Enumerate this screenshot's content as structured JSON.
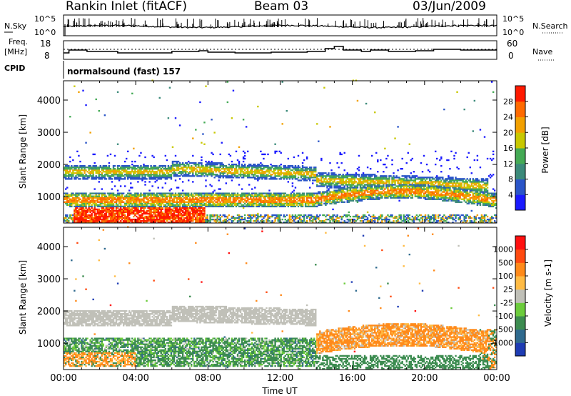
{
  "header": {
    "station": "Rankin Inlet (fitACF)",
    "beam": "Beam 03",
    "date": "03/Jun/2009"
  },
  "side_labels": {
    "nsky": "N.Sky",
    "freq_top": "Freq.",
    "freq_bottom": "[MHz]",
    "cpid": "CPID",
    "nsearch": "N.Search",
    "nave": "Nave"
  },
  "noise_axis": {
    "left_top": "10^5",
    "left_bottom": "10^0",
    "right_top": "10^5",
    "right_bottom": "10^0"
  },
  "freq_axis": {
    "left_top": "18",
    "left_bottom": "8",
    "right_top": "60",
    "right_bottom": "0"
  },
  "cpid_text": "normalsound (fast) 157",
  "chart_data": [
    {
      "type": "heatmap",
      "name": "power-panel",
      "ylabel": "Slant Range [km]",
      "xlabel": "",
      "ylim": [
        180,
        4600
      ],
      "yticks": [
        1000,
        2000,
        3000,
        4000
      ],
      "colorbar": {
        "label": "Power [dB]",
        "ticks": [
          "4",
          "8",
          "12",
          "16",
          "20",
          "24",
          "28"
        ],
        "colors": [
          "#1a1aff",
          "#2a55c8",
          "#3b8a7a",
          "#44aa55",
          "#c8c800",
          "#f2a000",
          "#ff6a00",
          "#ff1a00"
        ]
      },
      "bands": [
        {
          "range_km": [
            250,
            700
          ],
          "dominant": "28+ dB (red)",
          "x_hours": [
            0.5,
            7.5
          ]
        },
        {
          "range_km": [
            700,
            1100
          ],
          "dominant": "12-24 dB",
          "x_hours": [
            0,
            24
          ]
        },
        {
          "range_km": [
            1500,
            2100
          ],
          "dominant": "8-20 dB",
          "x_hours": [
            0,
            14
          ]
        },
        {
          "range_km": [
            1100,
            1800
          ],
          "dominant": "12-24 dB",
          "x_hours": [
            14,
            22
          ]
        }
      ]
    },
    {
      "type": "heatmap",
      "name": "velocity-panel",
      "ylabel": "Slant Range [km]",
      "xlabel": "Time UT",
      "ylim": [
        180,
        4600
      ],
      "yticks": [
        1000,
        2000,
        3000,
        4000
      ],
      "xticks": [
        "00:00",
        "04:00",
        "08:00",
        "12:00",
        "16:00",
        "20:00",
        "00:00"
      ],
      "colorbar": {
        "label": "Velocity [m s-1]",
        "ticks": [
          "1000",
          "500",
          "100",
          "25",
          "-25",
          "-100",
          "-500",
          "-1000"
        ],
        "colors": [
          "#1e3cb4",
          "#2f6a8e",
          "#3c8c50",
          "#6ccc3c",
          "#c0c0b8",
          "#ffbb44",
          "#ff8a1a",
          "#ff4a10",
          "#ff1010"
        ]
      },
      "bands": [
        {
          "range_km": [
            1500,
            2200
          ],
          "dominant": "-25 to 25 (grey)",
          "x_hours": [
            0,
            14
          ]
        },
        {
          "range_km": [
            300,
            1100
          ],
          "dominant": "100 to 500 (green)",
          "x_hours": [
            0,
            14
          ]
        },
        {
          "range_km": [
            700,
            1500
          ],
          "dominant": "-100 to -500 (orange)",
          "x_hours": [
            14,
            22
          ]
        }
      ]
    }
  ]
}
